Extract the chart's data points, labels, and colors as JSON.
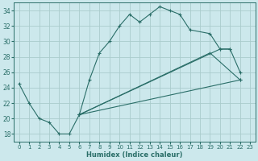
{
  "xlabel": "Humidex (Indice chaleur)",
  "bg_color": "#cce8ec",
  "grid_color": "#b0d4d8",
  "line_color": "#2a6e68",
  "xlim": [
    -0.5,
    23.5
  ],
  "ylim": [
    17,
    35
  ],
  "yticks": [
    18,
    20,
    22,
    24,
    26,
    28,
    30,
    32,
    34
  ],
  "xticks": [
    0,
    1,
    2,
    3,
    4,
    5,
    6,
    7,
    8,
    9,
    10,
    11,
    12,
    13,
    14,
    15,
    16,
    17,
    18,
    19,
    20,
    21,
    22,
    23
  ],
  "line1_x": [
    0,
    1,
    2,
    3,
    4,
    5,
    6,
    7,
    8,
    9,
    10,
    11,
    12,
    13,
    14,
    15,
    16,
    17,
    19,
    20,
    21
  ],
  "line1_y": [
    24.5,
    22.0,
    20.0,
    19.5,
    18.0,
    18.0,
    20.5,
    25.0,
    28.5,
    30.0,
    32.0,
    33.5,
    32.5,
    33.5,
    34.5,
    34.0,
    33.5,
    31.5,
    31.0,
    29.0,
    29.0
  ],
  "line2_x": [
    6,
    20,
    21,
    22
  ],
  "line2_y": [
    20.5,
    29.0,
    29.0,
    26.0
  ],
  "line3_x": [
    6,
    19,
    22
  ],
  "line3_y": [
    20.5,
    28.5,
    25.0
  ],
  "line4_x": [
    6,
    22
  ],
  "line4_y": [
    20.5,
    25.0
  ]
}
